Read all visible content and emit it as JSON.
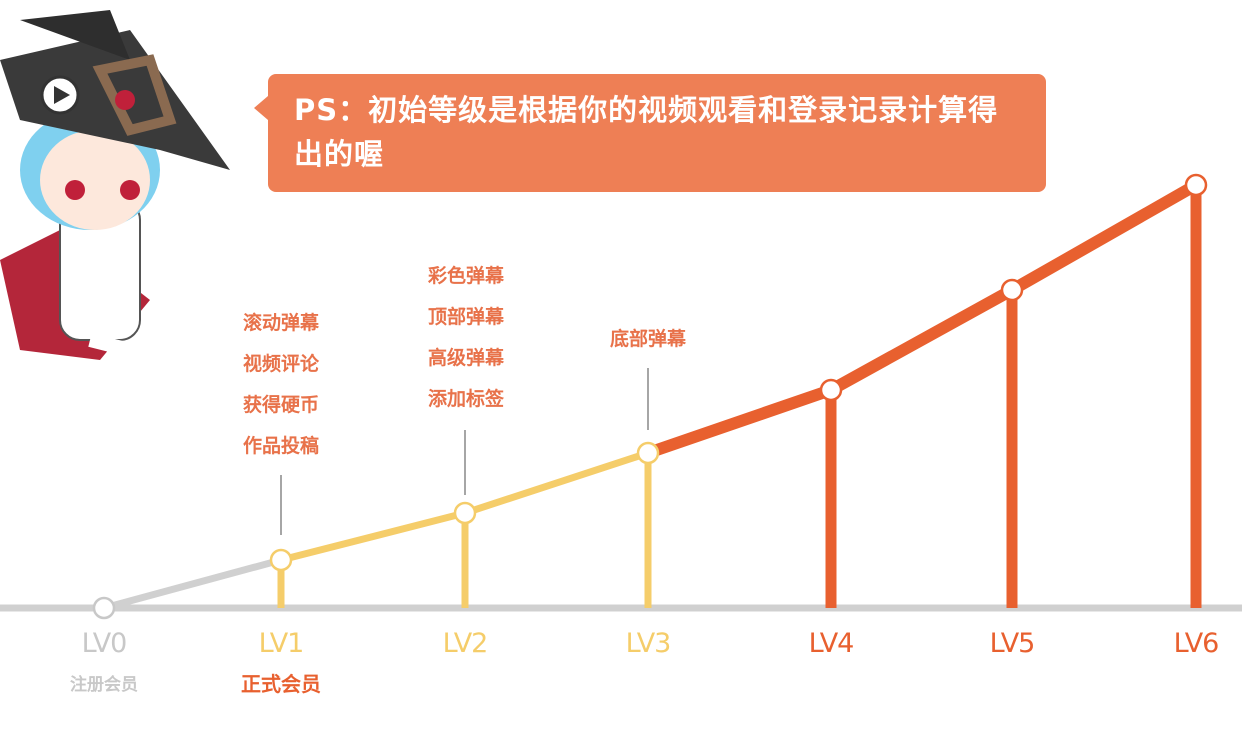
{
  "notice": "PS：初始等级是根据你的视频观看和登录记录计算得出的喔",
  "colors": {
    "gray": "#d0d0d0",
    "yellow": "#f5cd6a",
    "orange": "#e8602f",
    "bubble": "#ee7f55",
    "text": "#e8724a"
  },
  "levels": [
    {
      "label": "LV0",
      "subtitle": "注册会员",
      "color": "#c8c8c8"
    },
    {
      "label": "LV1",
      "subtitle": "正式会员",
      "color": "#f5cd6a"
    },
    {
      "label": "LV2",
      "color": "#f5cd6a"
    },
    {
      "label": "LV3",
      "color": "#f5cd6a"
    },
    {
      "label": "LV4",
      "color": "#e8602f"
    },
    {
      "label": "LV5",
      "color": "#e8602f"
    },
    {
      "label": "LV6",
      "color": "#e8602f"
    }
  ],
  "perks": {
    "lv1": [
      "滚动弹幕",
      "视频评论",
      "获得硬币",
      "作品投稿"
    ],
    "lv2": [
      "彩色弹幕",
      "顶部弹幕",
      "高级弹幕",
      "添加标签"
    ],
    "lv3": [
      "底部弹幕"
    ]
  },
  "mascot_icon": "witch-girl-mascot"
}
